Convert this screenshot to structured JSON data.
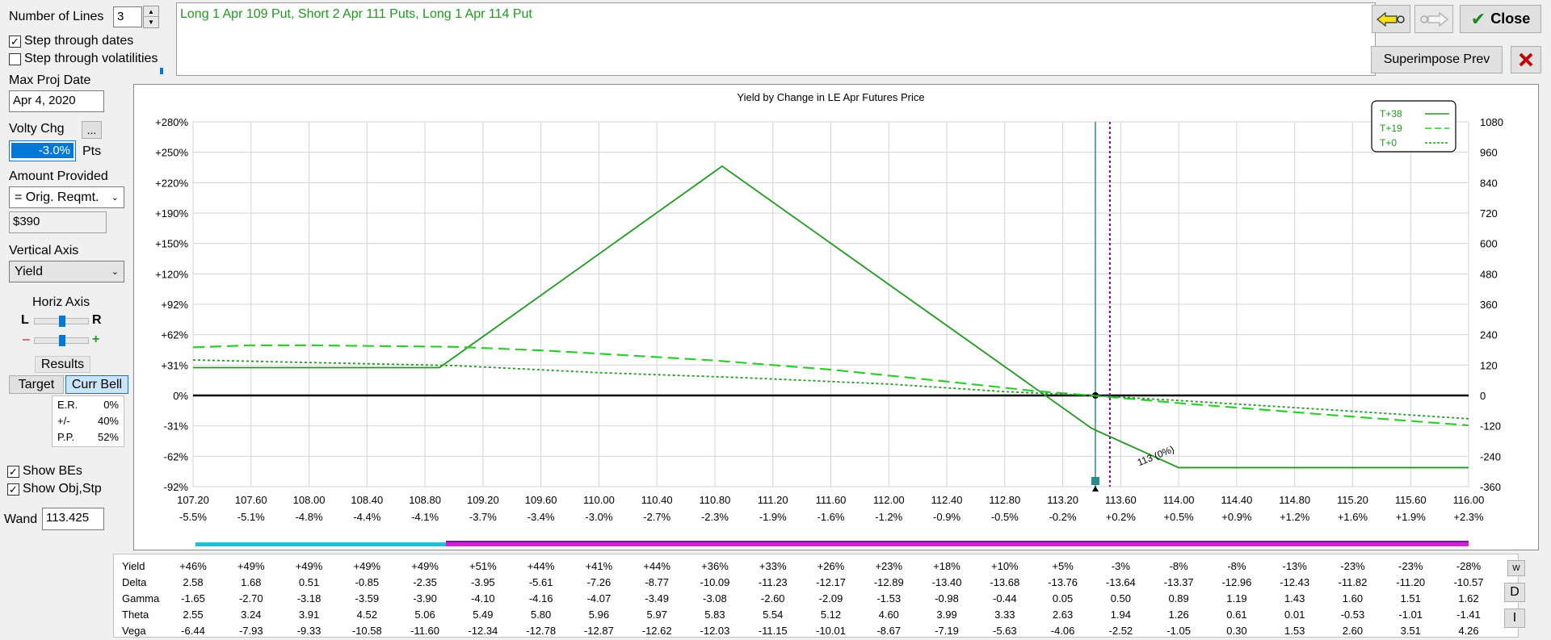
{
  "left_panel": {
    "number_of_lines_label": "Number of Lines",
    "number_of_lines_value": "3",
    "step_dates_label": "Step through dates",
    "step_dates_checked": true,
    "step_vols_label": "Step through volatilities",
    "step_vols_checked": false,
    "max_proj_date_label": "Max Proj Date",
    "max_proj_date_value": "Apr 4, 2020",
    "volty_chg_label": "Volty Chg",
    "volty_more_label": "...",
    "volty_chg_value": "-3.0%",
    "pts_label": "Pts",
    "amount_provided_label": "Amount Provided",
    "amount_provided_value": "= Orig. Reqmt.",
    "amount_value": "$390",
    "vertical_axis_label": "Vertical Axis",
    "vertical_axis_value": "Yield",
    "horiz_axis_label": "Horiz Axis",
    "l_label": "L",
    "r_label": "R",
    "minus_label": "–",
    "plus_label": "+",
    "results_label": "Results",
    "target_label": "Target",
    "curr_bell_label": "Curr Bell",
    "results": [
      {
        "name": "E.R.",
        "value": "0%"
      },
      {
        "name": "+/-",
        "value": "40%"
      },
      {
        "name": "P.P.",
        "value": "52%"
      }
    ],
    "show_bes_label": "Show BEs",
    "show_bes_checked": true,
    "show_objstp_label": "Show Obj,Stp",
    "show_objstp_checked": true,
    "wand_label": "Wand",
    "wand_value": "113.425"
  },
  "strategy_text": "Long 1 Apr 109 Put, Short 2 Apr 111 Puts, Long 1 Apr 114 Put",
  "toolbar": {
    "close_label": "Close",
    "superimpose_label": "Superimpose Prev",
    "back_icon": "arrow-left-icon",
    "forward_icon": "arrow-right-icon",
    "delete_icon": "x-icon"
  },
  "colors": {
    "line": "#1e9a1e",
    "dashed": "#2ecc2e",
    "cursor": "#2b8a8a",
    "purple": "#8b008b",
    "cyan_bar": "#19c3d2",
    "magenta_bar": "#d81ed8",
    "purple_bar": "#5a2a9a"
  },
  "chart_data": {
    "type": "line",
    "title": "Yield by Change in LE Apr Futures Price",
    "x_ticks": [
      "107.20",
      "107.60",
      "108.00",
      "108.40",
      "108.80",
      "109.20",
      "109.60",
      "110.00",
      "110.40",
      "110.80",
      "111.20",
      "111.60",
      "112.00",
      "112.40",
      "112.80",
      "113.20",
      "113.60",
      "114.00",
      "114.40",
      "114.80",
      "115.20",
      "115.60",
      "116.00"
    ],
    "x_pct_ticks": [
      "-5.5%",
      "-5.1%",
      "-4.8%",
      "-4.4%",
      "-4.1%",
      "-3.7%",
      "-3.4%",
      "-3.0%",
      "-2.7%",
      "-2.3%",
      "-1.9%",
      "-1.6%",
      "-1.2%",
      "-0.9%",
      "-0.5%",
      "-0.2%",
      "+0.2%",
      "+0.5%",
      "+0.9%",
      "+1.2%",
      "+1.6%",
      "+1.9%",
      "+2.3%"
    ],
    "y_left_ticks": [
      "+280%",
      "+250%",
      "+220%",
      "+190%",
      "+150%",
      "+120%",
      "+92%",
      "+62%",
      "+31%",
      "0%",
      "-31%",
      "-62%",
      "-92%"
    ],
    "y_right_ticks": [
      "1080",
      "960",
      "840",
      "720",
      "600",
      "480",
      "360",
      "240",
      "120",
      "0",
      "-120",
      "-240",
      "-360"
    ],
    "xlim": [
      107.2,
      116.0
    ],
    "ylim": [
      -360,
      1080
    ],
    "grid": true,
    "legend_position": "top-right",
    "series": [
      {
        "name": "T+38",
        "style": "solid",
        "x": [
          107.2,
          108.9,
          110.85,
          113.4,
          114.0,
          116.0
        ],
        "y": [
          110,
          110,
          905,
          -130,
          -285,
          -285
        ]
      },
      {
        "name": "T+19",
        "style": "dashed",
        "x": [
          107.2,
          107.6,
          108.0,
          109.0,
          109.6,
          110.0,
          110.8,
          111.6,
          112.4,
          113.0,
          113.4,
          114.0,
          115.0,
          116.0
        ],
        "y": [
          190,
          198,
          198,
          192,
          178,
          165,
          138,
          102,
          55,
          18,
          0,
          -30,
          -75,
          -118
        ]
      },
      {
        "name": "T+0",
        "style": "dotted",
        "x": [
          107.2,
          108.0,
          109.0,
          110.0,
          111.0,
          112.0,
          112.8,
          113.4,
          114.0,
          115.0,
          116.0
        ],
        "y": [
          140,
          130,
          118,
          90,
          70,
          45,
          15,
          0,
          -20,
          -55,
          -92
        ]
      }
    ],
    "zero_line_y": 0,
    "cursor_x": 113.425,
    "breakeven_x": 113.525,
    "annotation_label": "113 (0%)",
    "annotation_x": 113.85,
    "annotation_y": -250
  },
  "table": {
    "rows": [
      {
        "label": "Yield",
        "values": [
          "+46%",
          "+49%",
          "+49%",
          "+49%",
          "+49%",
          "+51%",
          "+44%",
          "+41%",
          "+44%",
          "+36%",
          "+33%",
          "+26%",
          "+23%",
          "+18%",
          "+10%",
          "+5%",
          "-3%",
          "-8%",
          "-8%",
          "-13%",
          "-23%",
          "-23%",
          "-28%"
        ]
      },
      {
        "label": "Delta",
        "values": [
          "2.58",
          "1.68",
          "0.51",
          "-0.85",
          "-2.35",
          "-3.95",
          "-5.61",
          "-7.26",
          "-8.77",
          "-10.09",
          "-11.23",
          "-12.17",
          "-12.89",
          "-13.40",
          "-13.68",
          "-13.76",
          "-13.64",
          "-13.37",
          "-12.96",
          "-12.43",
          "-11.82",
          "-11.20",
          "-10.57"
        ]
      },
      {
        "label": "Gamma",
        "values": [
          "-1.65",
          "-2.70",
          "-3.18",
          "-3.59",
          "-3.90",
          "-4.10",
          "-4.16",
          "-4.07",
          "-3.49",
          "-3.08",
          "-2.60",
          "-2.09",
          "-1.53",
          "-0.98",
          "-0.44",
          "0.05",
          "0.50",
          "0.89",
          "1.19",
          "1.43",
          "1.60",
          "1.51",
          "1.62"
        ]
      },
      {
        "label": "Theta",
        "values": [
          "2.55",
          "3.24",
          "3.91",
          "4.52",
          "5.06",
          "5.49",
          "5.80",
          "5.96",
          "5.97",
          "5.83",
          "5.54",
          "5.12",
          "4.60",
          "3.99",
          "3.33",
          "2.63",
          "1.94",
          "1.26",
          "0.61",
          "0.01",
          "-0.53",
          "-1.01",
          "-1.41"
        ]
      },
      {
        "label": "Vega",
        "values": [
          "-6.44",
          "-7.93",
          "-9.33",
          "-10.58",
          "-11.60",
          "-12.34",
          "-12.78",
          "-12.87",
          "-12.62",
          "-12.03",
          "-11.15",
          "-10.01",
          "-8.67",
          "-7.19",
          "-5.63",
          "-4.06",
          "-2.52",
          "-1.05",
          "0.30",
          "1.53",
          "2.60",
          "3.51",
          "4.26"
        ]
      }
    ],
    "side_buttons": [
      "W",
      "D",
      "I"
    ]
  }
}
